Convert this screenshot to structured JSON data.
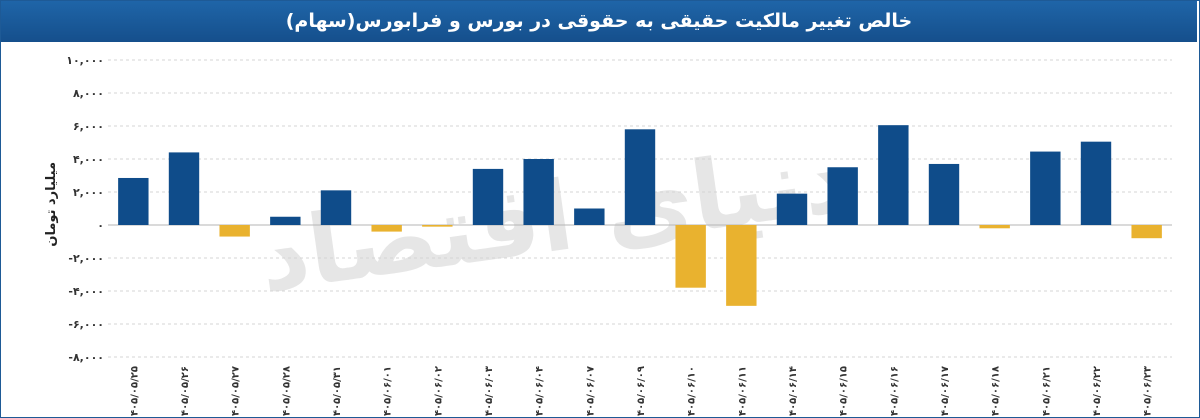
{
  "chart_data": {
    "type": "bar",
    "title": "خالص تغییر مالکیت حقیقی به حقوقی در بورس و فرابورس(سهام)",
    "ylabel": "میلیارد تومان",
    "ylim": [
      -8000,
      10000
    ],
    "yticks": [
      10000,
      8000,
      6000,
      4000,
      2000,
      0,
      -2000,
      -4000,
      -6000,
      -8000
    ],
    "ytick_labels": [
      "۱۰,۰۰۰",
      "۸,۰۰۰",
      "۶,۰۰۰",
      "۴,۰۰۰",
      "۲,۰۰۰",
      "۰",
      "-۲,۰۰۰",
      "-۴,۰۰۰",
      "-۶,۰۰۰",
      "-۸,۰۰۰"
    ],
    "categories": [
      "۱۴۰۵/۰۵/۲۵",
      "۱۴۰۵/۰۵/۲۶",
      "۱۴۰۵/۰۵/۲۷",
      "۱۴۰۵/۰۵/۲۸",
      "۱۴۰۵/۰۵/۳۱",
      "۱۴۰۵/۰۶/۰۱",
      "۱۴۰۵/۰۶/۰۲",
      "۱۴۰۵/۰۶/۰۳",
      "۱۴۰۵/۰۶/۰۴",
      "۱۴۰۵/۰۶/۰۷",
      "۱۴۰۵/۰۶/۰۹",
      "۱۴۰۵/۰۶/۱۰",
      "۱۴۰۵/۰۶/۱۱",
      "۱۴۰۵/۰۶/۱۴",
      "۱۴۰۵/۰۶/۱۵",
      "۱۴۰۵/۰۶/۱۶",
      "۱۴۰۵/۰۶/۱۷",
      "۱۴۰۵/۰۶/۱۸",
      "۱۴۰۵/۰۶/۲۱",
      "۱۴۰۵/۰۶/۲۲",
      "۱۴۰۵/۰۶/۲۳"
    ],
    "values": [
      2850,
      4400,
      -700,
      500,
      2100,
      -400,
      -100,
      3400,
      4000,
      1000,
      5800,
      -3800,
      -4900,
      1900,
      3500,
      6050,
      3700,
      -200,
      4450,
      5050,
      -800
    ],
    "positive_color": "#0f4c8a",
    "negative_color": "#e9b22f",
    "grid": "horizontal dashed",
    "watermark": "دنیای اقتصاد"
  }
}
